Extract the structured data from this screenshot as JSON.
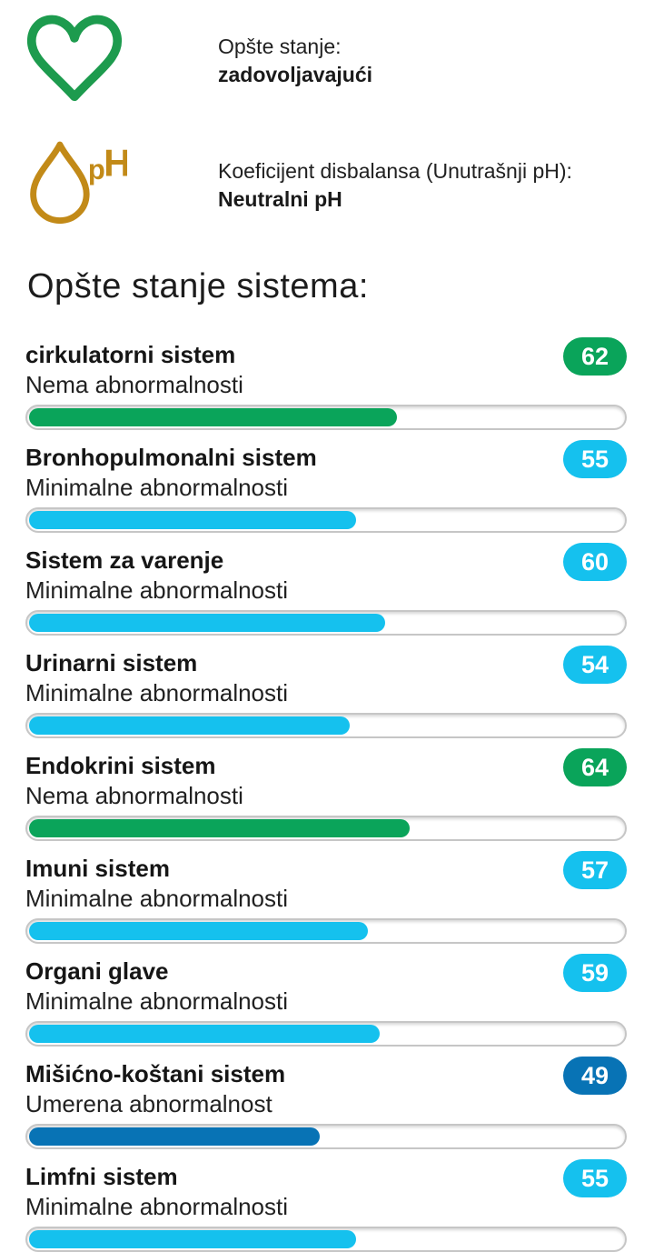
{
  "header": {
    "items": [
      {
        "icon": "heart-icon",
        "label": "Opšte stanje:",
        "value": "zadovoljavajući"
      },
      {
        "icon": "ph-drop-icon",
        "label": "Koeficijent disbalansa (Unutrašnji pH):",
        "value": "Neutralni pH"
      }
    ]
  },
  "section_title": "Opšte stanje sistema:",
  "systems": [
    {
      "name": "cirkulatorni sistem",
      "status": "Nema abnormalnosti",
      "score": 62,
      "level": "good"
    },
    {
      "name": "Bronhopulmonalni sistem",
      "status": "Minimalne abnormalnosti",
      "score": 55,
      "level": "minimal"
    },
    {
      "name": "Sistem za varenje",
      "status": "Minimalne abnormalnosti",
      "score": 60,
      "level": "minimal"
    },
    {
      "name": "Urinarni sistem",
      "status": "Minimalne abnormalnosti",
      "score": 54,
      "level": "minimal"
    },
    {
      "name": "Endokrini sistem",
      "status": "Nema abnormalnosti",
      "score": 64,
      "level": "good"
    },
    {
      "name": "Imuni sistem",
      "status": "Minimalne abnormalnosti",
      "score": 57,
      "level": "minimal"
    },
    {
      "name": "Organi glave",
      "status": "Minimalne abnormalnosti",
      "score": 59,
      "level": "minimal"
    },
    {
      "name": "Mišićno-koštani sistem",
      "status": "Umerena abnormalnost",
      "score": 49,
      "level": "moderate"
    },
    {
      "name": "Limfni sistem",
      "status": "Minimalne abnormalnosti",
      "score": 55,
      "level": "minimal"
    }
  ],
  "colors": {
    "good": "#0aa45a",
    "minimal": "#15c1ee",
    "moderate": "#0873b5",
    "heart": "#1d9b4e",
    "ph": "#c28a18",
    "track_border": "#c6c6c6"
  },
  "chart_data": {
    "type": "bar",
    "title": "Opšte stanje sistema:",
    "categories": [
      "cirkulatorni sistem",
      "Bronhopulmonalni sistem",
      "Sistem za varenje",
      "Urinarni sistem",
      "Endokrini sistem",
      "Imuni sistem",
      "Organi glave",
      "Mišićno-koštani sistem",
      "Limfni sistem"
    ],
    "values": [
      62,
      55,
      60,
      54,
      64,
      57,
      59,
      49,
      55
    ],
    "xlim": [
      0,
      100
    ],
    "legend": [
      "Nema abnormalnosti = zelena",
      "Minimalne abnormalnosti = svetloplava",
      "Umerena abnormalnost = plava"
    ]
  }
}
